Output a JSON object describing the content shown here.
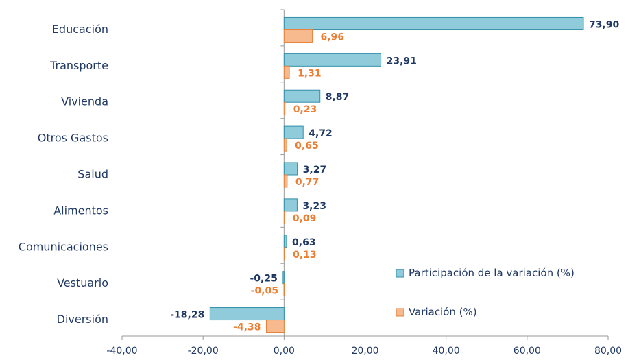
{
  "chart_data": {
    "type": "bar",
    "orientation": "horizontal",
    "categories": [
      "Educación",
      "Transporte",
      "Vivienda",
      "Otros Gastos",
      "Salud",
      "Alimentos",
      "Comunicaciones",
      "Vestuario",
      "Diversión"
    ],
    "series": [
      {
        "name": "Participación de la variación (%)",
        "color": "#8fcbdb",
        "values": [
          73.9,
          23.91,
          8.87,
          4.72,
          3.27,
          3.23,
          0.63,
          -0.25,
          -18.28
        ],
        "value_labels": [
          "73,90",
          "23,91",
          "8,87",
          "4,72",
          "3,27",
          "3,23",
          "0,63",
          "-0,25",
          "-18,28"
        ]
      },
      {
        "name": "Variación (%)",
        "color": "#f7b98e",
        "values": [
          6.96,
          1.31,
          0.23,
          0.65,
          0.77,
          0.09,
          0.13,
          -0.05,
          -4.38
        ],
        "value_labels": [
          "6,96",
          "1,31",
          "0,23",
          "0,65",
          "0,77",
          "0,09",
          "0,13",
          "-0,05",
          "-4,38"
        ]
      }
    ],
    "xlim": [
      -40,
      80
    ],
    "xticks": [
      {
        "value": -40,
        "label": "-40,00"
      },
      {
        "value": -20,
        "label": "-20,00"
      },
      {
        "value": 0,
        "label": "0,00"
      },
      {
        "value": 20,
        "label": "20,00"
      },
      {
        "value": 40,
        "label": "40,00"
      },
      {
        "value": 60,
        "label": "60,00"
      },
      {
        "value": 80,
        "label": "80,00"
      }
    ]
  }
}
